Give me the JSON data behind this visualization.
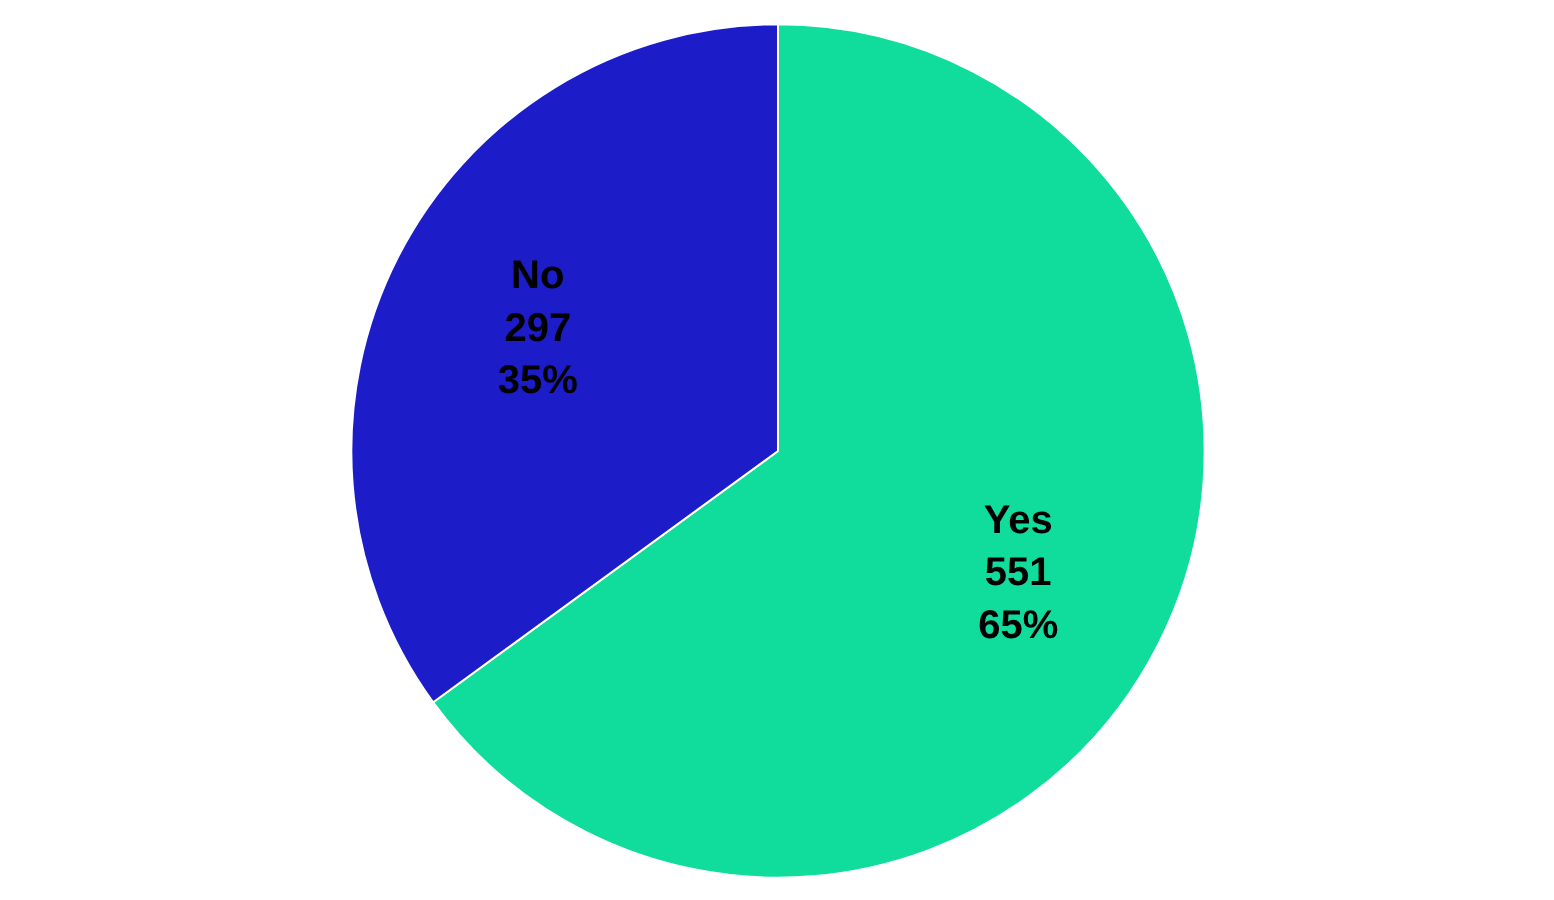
{
  "chart_data": {
    "type": "pie",
    "categories": [
      "Yes",
      "No"
    ],
    "values": [
      551,
      297
    ],
    "colors": [
      "#10dc9c",
      "#1c1cc8"
    ],
    "value_labels": [
      "551\n65%",
      "297\n35%"
    ]
  }
}
